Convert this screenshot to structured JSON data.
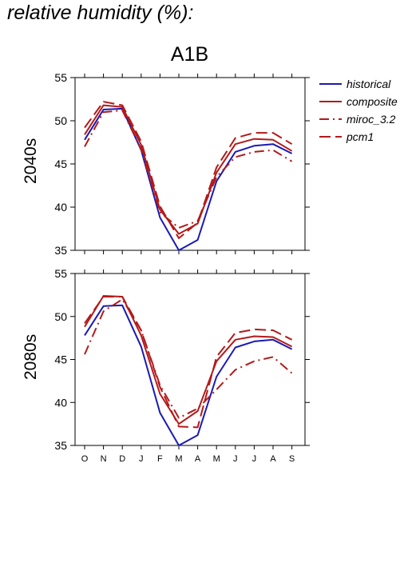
{
  "heading": "relative humidity (%):",
  "scenario": "A1B",
  "chart_data": [
    {
      "type": "line",
      "row_label": "2040s",
      "categories": [
        "O",
        "N",
        "D",
        "J",
        "F",
        "M",
        "A",
        "M",
        "J",
        "J",
        "A",
        "S"
      ],
      "ylim": [
        35,
        55
      ],
      "yticks": [
        35,
        40,
        45,
        50,
        55
      ],
      "legend_position": "right",
      "series": [
        {
          "name": "historical",
          "color": "#1a1ab3",
          "dash": "solid",
          "values": [
            47.8,
            51.3,
            51.4,
            46.6,
            38.8,
            35.0,
            36.2,
            43.0,
            46.4,
            47.1,
            47.3,
            46.2
          ]
        },
        {
          "name": "composite",
          "color": "#b31a1a",
          "dash": "solid",
          "values": [
            48.4,
            51.8,
            51.6,
            47.2,
            39.7,
            36.9,
            38.1,
            44.0,
            47.3,
            47.9,
            47.8,
            46.5
          ]
        },
        {
          "name": "miroc_3.2",
          "color": "#b31a1a",
          "dash": "dashdot",
          "values": [
            47.0,
            51.0,
            51.2,
            46.7,
            39.4,
            37.6,
            38.4,
            43.5,
            45.8,
            46.4,
            46.6,
            45.3
          ]
        },
        {
          "name": "pcm1",
          "color": "#b31a1a",
          "dash": "longdash",
          "values": [
            49.2,
            52.2,
            51.8,
            47.6,
            40.1,
            36.4,
            38.2,
            44.6,
            48.0,
            48.6,
            48.6,
            47.3
          ]
        }
      ]
    },
    {
      "type": "line",
      "row_label": "2080s",
      "categories": [
        "O",
        "N",
        "D",
        "J",
        "F",
        "M",
        "A",
        "M",
        "J",
        "J",
        "A",
        "S"
      ],
      "ylim": [
        35,
        55
      ],
      "yticks": [
        35,
        40,
        45,
        50,
        55
      ],
      "series": [
        {
          "name": "historical",
          "color": "#1a1ab3",
          "dash": "solid",
          "values": [
            47.8,
            51.2,
            51.3,
            46.5,
            38.8,
            35.0,
            36.2,
            43.0,
            46.4,
            47.1,
            47.3,
            46.2
          ]
        },
        {
          "name": "composite",
          "color": "#b31a1a",
          "dash": "solid",
          "values": [
            48.8,
            52.4,
            52.3,
            47.8,
            41.0,
            37.5,
            39.0,
            44.8,
            47.3,
            47.7,
            47.6,
            46.5
          ]
        },
        {
          "name": "miroc_3.2",
          "color": "#b31a1a",
          "dash": "dashdot",
          "values": [
            45.6,
            50.6,
            52.0,
            48.4,
            42.0,
            38.2,
            39.3,
            41.5,
            43.8,
            44.8,
            45.3,
            43.4
          ]
        },
        {
          "name": "pcm1",
          "color": "#b31a1a",
          "dash": "longdash",
          "values": [
            49.2,
            52.3,
            52.3,
            48.4,
            41.8,
            37.2,
            37.1,
            45.3,
            48.1,
            48.5,
            48.4,
            47.3
          ]
        }
      ]
    }
  ]
}
